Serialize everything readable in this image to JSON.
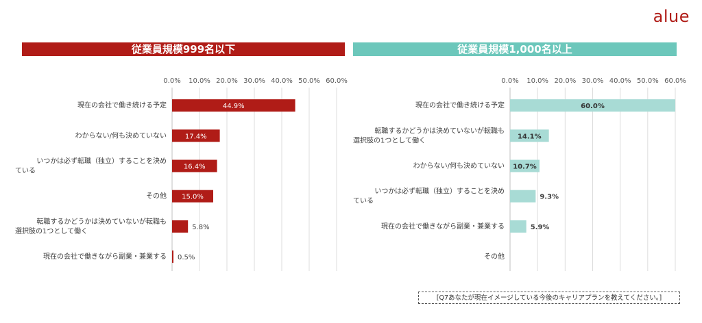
{
  "logo": {
    "text": "alue",
    "color": "#b01c17"
  },
  "note": "[Q7あなたが現在イメージしている今後のキャリアプランを教えてください。]",
  "colors": {
    "left": "#b01c17",
    "right": "#a8dbd5",
    "right_title": "#6cc7bb"
  },
  "chart_data": [
    {
      "type": "bar",
      "orientation": "horizontal",
      "title": "従業員規模999名以下",
      "xlim": [
        0,
        60
      ],
      "xticks": [
        "0.0%",
        "10.0%",
        "20.0%",
        "30.0%",
        "40.0%",
        "50.0%",
        "60.0%"
      ],
      "grid": true,
      "categories": [
        "現在の会社で働き続ける予定",
        "わからない/何も決めていない",
        "いつかは必ず転職（独立）することを決めている",
        "その他",
        "転職するかどうかは決めていないが転職も選択肢の1つとして働く",
        "現在の会社で働きながら副業・兼業する"
      ],
      "values": [
        44.9,
        17.4,
        16.4,
        15.0,
        5.8,
        0.5
      ],
      "data_labels": [
        "44.9%",
        "17.4%",
        "16.4%",
        "15.0%",
        "5.8%",
        "0.5%"
      ]
    },
    {
      "type": "bar",
      "orientation": "horizontal",
      "title": "従業員規模1,000名以上",
      "xlim": [
        0,
        60
      ],
      "xticks": [
        "0.0%",
        "10.0%",
        "20.0%",
        "30.0%",
        "40.0%",
        "50.0%",
        "60.0%"
      ],
      "grid": true,
      "categories": [
        "現在の会社で働き続ける予定",
        "転職するかどうかは決めていないが転職も選択肢の1つとして働く",
        "わからない/何も決めていない",
        "いつかは必ず転職（独立）することを決めている",
        "現在の会社で働きながら副業・兼業する",
        "その他"
      ],
      "values": [
        60.0,
        14.1,
        10.7,
        9.3,
        5.9,
        0
      ],
      "data_labels": [
        "60.0%",
        "14.1%",
        "10.7%",
        "9.3%",
        "5.9%",
        ""
      ]
    }
  ]
}
